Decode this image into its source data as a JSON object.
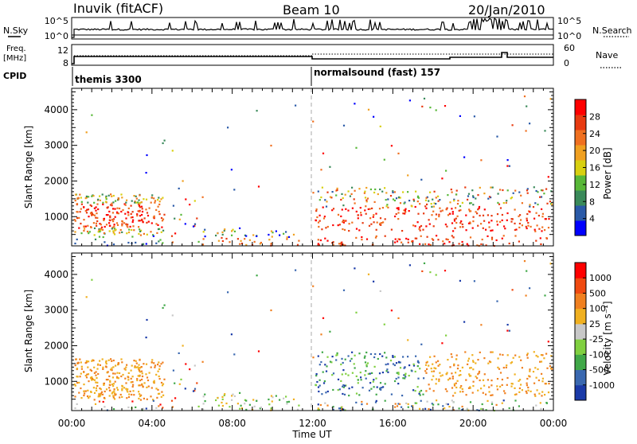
{
  "header": {
    "station": "Inuvik (fitACF)",
    "beam": "Beam 10",
    "date": "20/Jan/2010"
  },
  "top_panels": {
    "nsky_label": "N.Sky",
    "nsky_ticks": [
      "10^5",
      "10^0"
    ],
    "nsearch_label": "N.Search",
    "nsearch_ticks": [
      "10^5",
      "10^0"
    ],
    "freq_label_1": "Freq.",
    "freq_label_2": "[MHz]",
    "freq_ticks": [
      "12",
      "8"
    ],
    "nave_label": "Nave",
    "nave_ticks": [
      "60",
      "0"
    ],
    "cpid_label": "CPID",
    "cpid_segments": [
      "themis 3300",
      "normalsound (fast) 157"
    ]
  },
  "chart_data": [
    {
      "type": "heatmap",
      "name": "power",
      "ylabel": "Slant Range [km]",
      "ylim": [
        180,
        4600
      ],
      "yticks": [
        "1000",
        "2000",
        "3000",
        "4000"
      ],
      "xlim": [
        "00:00",
        "24:00"
      ],
      "colorbar_label": "Power [dB]",
      "colorbar_ticks": [
        "28",
        "24",
        "20",
        "16",
        "12",
        "8",
        "4"
      ],
      "colors": [
        "#0000ff",
        "#2a5aa8",
        "#3a8a5a",
        "#58b838",
        "#d8d010",
        "#f0a020",
        "#f07020",
        "#e83a10",
        "#ff0000"
      ]
    },
    {
      "type": "heatmap",
      "name": "velocity",
      "ylabel": "Slant Range [km]",
      "ylim": [
        180,
        4600
      ],
      "yticks": [
        "1000",
        "2000",
        "3000",
        "4000"
      ],
      "xlim": [
        "00:00",
        "24:00"
      ],
      "xticks": [
        "00:00",
        "04:00",
        "08:00",
        "12:00",
        "16:00",
        "20:00",
        "00:00"
      ],
      "xlabel": "Time UT",
      "colorbar_label": "Velocity [m s⁻¹]",
      "colorbar_ticks": [
        "1000",
        "500",
        "100",
        "25",
        "-25",
        "-100",
        "-500",
        "-1000"
      ],
      "colors": [
        "#1a3aa8",
        "#3a68b0",
        "#40a848",
        "#80d040",
        "#c8c8c8",
        "#f0b020",
        "#f08020",
        "#f04a10",
        "#ff0000"
      ]
    }
  ]
}
